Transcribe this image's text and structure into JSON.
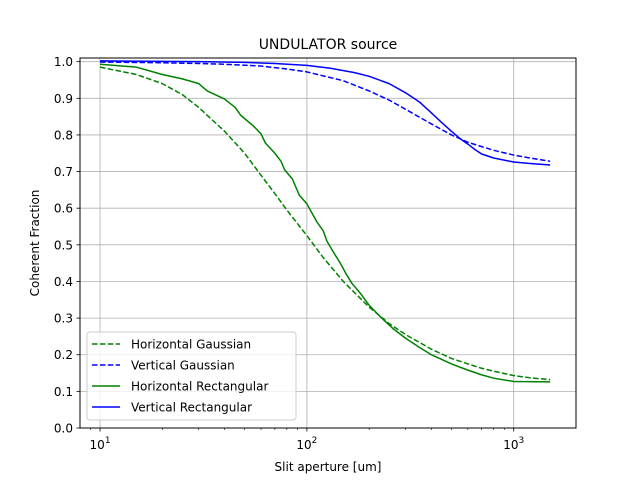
{
  "chart_data": {
    "type": "line",
    "title": "UNDULATOR source",
    "xlabel": "Slit aperture [um]",
    "ylabel": "Coherent Fraction",
    "xscale": "log",
    "xlim": [
      8,
      2000
    ],
    "ylim": [
      0,
      1.01
    ],
    "xticks": [
      10,
      100,
      1000
    ],
    "xtick_labels": [
      {
        "base": "10",
        "exp": "1"
      },
      {
        "base": "10",
        "exp": "2"
      },
      {
        "base": "10",
        "exp": "3"
      }
    ],
    "yticks": [
      0.0,
      0.1,
      0.2,
      0.3,
      0.4,
      0.5,
      0.6,
      0.7,
      0.8,
      0.9,
      1.0
    ],
    "ytick_labels": [
      "0.0",
      "0.1",
      "0.2",
      "0.3",
      "0.4",
      "0.5",
      "0.6",
      "0.7",
      "0.8",
      "0.9",
      "1.0"
    ],
    "grid": true,
    "legend_position": "lower-left",
    "series": [
      {
        "name": "Horizontal Gaussian",
        "color": "#008000",
        "dash": "dashed",
        "points": [
          [
            10,
            0.985
          ],
          [
            15,
            0.965
          ],
          [
            20,
            0.94
          ],
          [
            25,
            0.91
          ],
          [
            30,
            0.875
          ],
          [
            40,
            0.81
          ],
          [
            50,
            0.75
          ],
          [
            60,
            0.69
          ],
          [
            70,
            0.64
          ],
          [
            80,
            0.595
          ],
          [
            100,
            0.525
          ],
          [
            120,
            0.465
          ],
          [
            150,
            0.4
          ],
          [
            200,
            0.33
          ],
          [
            250,
            0.285
          ],
          [
            300,
            0.255
          ],
          [
            400,
            0.215
          ],
          [
            500,
            0.19
          ],
          [
            600,
            0.175
          ],
          [
            700,
            0.163
          ],
          [
            800,
            0.155
          ],
          [
            1000,
            0.143
          ],
          [
            1200,
            0.137
          ],
          [
            1500,
            0.132
          ]
        ]
      },
      {
        "name": "Vertical Gaussian",
        "color": "#0000ff",
        "dash": "dashed",
        "points": [
          [
            10,
            0.999
          ],
          [
            20,
            0.997
          ],
          [
            30,
            0.995
          ],
          [
            40,
            0.993
          ],
          [
            60,
            0.988
          ],
          [
            80,
            0.98
          ],
          [
            100,
            0.972
          ],
          [
            150,
            0.948
          ],
          [
            200,
            0.92
          ],
          [
            250,
            0.895
          ],
          [
            300,
            0.87
          ],
          [
            400,
            0.83
          ],
          [
            500,
            0.8
          ],
          [
            600,
            0.78
          ],
          [
            700,
            0.768
          ],
          [
            800,
            0.758
          ],
          [
            1000,
            0.745
          ],
          [
            1200,
            0.737
          ],
          [
            1500,
            0.728
          ]
        ]
      },
      {
        "name": "Horizontal Rectangular",
        "color": "#008000",
        "dash": "solid",
        "points": [
          [
            10,
            0.993
          ],
          [
            15,
            0.985
          ],
          [
            20,
            0.965
          ],
          [
            25,
            0.953
          ],
          [
            30,
            0.94
          ],
          [
            33,
            0.92
          ],
          [
            40,
            0.898
          ],
          [
            45,
            0.875
          ],
          [
            48,
            0.853
          ],
          [
            55,
            0.825
          ],
          [
            60,
            0.803
          ],
          [
            63,
            0.778
          ],
          [
            70,
            0.75
          ],
          [
            75,
            0.728
          ],
          [
            78,
            0.705
          ],
          [
            85,
            0.68
          ],
          [
            88,
            0.66
          ],
          [
            92,
            0.635
          ],
          [
            100,
            0.612
          ],
          [
            105,
            0.59
          ],
          [
            112,
            0.562
          ],
          [
            120,
            0.538
          ],
          [
            125,
            0.51
          ],
          [
            135,
            0.478
          ],
          [
            145,
            0.45
          ],
          [
            155,
            0.42
          ],
          [
            165,
            0.395
          ],
          [
            180,
            0.37
          ],
          [
            200,
            0.335
          ],
          [
            230,
            0.3
          ],
          [
            260,
            0.272
          ],
          [
            300,
            0.245
          ],
          [
            350,
            0.22
          ],
          [
            400,
            0.2
          ],
          [
            500,
            0.175
          ],
          [
            600,
            0.158
          ],
          [
            700,
            0.145
          ],
          [
            800,
            0.136
          ],
          [
            1000,
            0.127
          ],
          [
            1500,
            0.126
          ]
        ]
      },
      {
        "name": "Vertical Rectangular",
        "color": "#0000ff",
        "dash": "solid",
        "points": [
          [
            10,
            1.002
          ],
          [
            30,
            1.0
          ],
          [
            50,
            0.998
          ],
          [
            70,
            0.995
          ],
          [
            100,
            0.99
          ],
          [
            130,
            0.982
          ],
          [
            170,
            0.97
          ],
          [
            200,
            0.96
          ],
          [
            250,
            0.94
          ],
          [
            300,
            0.915
          ],
          [
            350,
            0.89
          ],
          [
            400,
            0.86
          ],
          [
            450,
            0.833
          ],
          [
            500,
            0.81
          ],
          [
            550,
            0.79
          ],
          [
            600,
            0.775
          ],
          [
            650,
            0.76
          ],
          [
            700,
            0.748
          ],
          [
            800,
            0.737
          ],
          [
            1000,
            0.726
          ],
          [
            1200,
            0.722
          ],
          [
            1500,
            0.718
          ]
        ]
      }
    ]
  }
}
